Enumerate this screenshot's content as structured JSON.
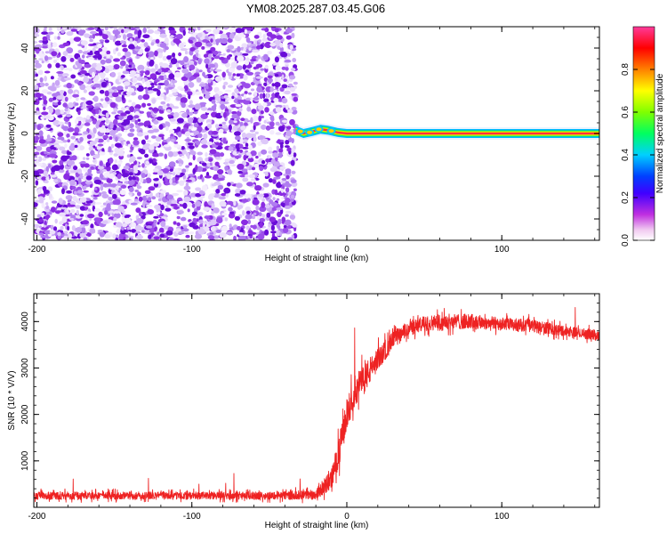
{
  "title": "YM08.2025.287.03.45.G06",
  "colors": {
    "snr_line": "#ee2222",
    "speckle_base": "#8a2be2",
    "colorbar": [
      "#ffffff",
      "#e040e0",
      "#8000ff",
      "#0000ff",
      "#00c0ff",
      "#00ff80",
      "#80ff00",
      "#ffff00",
      "#ff8000",
      "#ff0000",
      "#ff3090"
    ]
  },
  "chart_data": [
    {
      "type": "heatmap",
      "title": "YM08.2025.287.03.45.G06",
      "xlabel": "Height of straight line (km)",
      "ylabel": "Frequency (Hz)",
      "xlim": [
        -202,
        163
      ],
      "ylim": [
        -50,
        50
      ],
      "xticks": [
        "-200",
        "-100",
        "0",
        "100"
      ],
      "xtick_values": [
        -200,
        -100,
        0,
        100
      ],
      "yticks": [
        "-40",
        "-20",
        "0",
        "20",
        "40"
      ],
      "ytick_values": [
        -40,
        -20,
        0,
        20,
        40
      ],
      "noise_region_x": [
        -202,
        -33
      ],
      "signal": {
        "frequency": 0,
        "x_start": -33,
        "x_end": 163,
        "wobble_points": [
          [
            -33,
            1.5
          ],
          [
            -28,
            0
          ],
          [
            -22,
            1
          ],
          [
            -17,
            2
          ],
          [
            -12,
            1.5
          ],
          [
            -6,
            0.5
          ],
          [
            0,
            0
          ],
          [
            163,
            0
          ]
        ]
      },
      "colorbar": {
        "label": "Normalized spectral amplitude",
        "range": [
          0,
          1
        ],
        "ticks": [
          "0.0",
          "0.2",
          "0.4",
          "0.6",
          "0.8"
        ],
        "tick_values": [
          0.0,
          0.2,
          0.4,
          0.6,
          0.8
        ]
      }
    },
    {
      "type": "line",
      "xlabel": "Height of straight line (km)",
      "ylabel": "SNR (10 * V/V)",
      "xlim": [
        -202,
        163
      ],
      "ylim": [
        0,
        4600
      ],
      "xticks": [
        "-200",
        "-100",
        "0",
        "100"
      ],
      "xtick_values": [
        -200,
        -100,
        0,
        100
      ],
      "yticks": [
        "1000",
        "2000",
        "3000",
        "4000"
      ],
      "ytick_values": [
        1000,
        2000,
        3000,
        4000
      ],
      "series": [
        {
          "name": "SNR",
          "x": [
            -202,
            -150,
            -100,
            -60,
            -40,
            -20,
            -10,
            -5,
            0,
            5,
            10,
            20,
            30,
            40,
            50,
            60,
            80,
            100,
            120,
            140,
            163
          ],
          "y": [
            250,
            250,
            250,
            250,
            250,
            280,
            600,
            1200,
            2000,
            2500,
            2700,
            3200,
            3600,
            3850,
            3950,
            4000,
            4000,
            3950,
            3900,
            3800,
            3700
          ],
          "noise_amplitude": [
            150,
            150,
            150,
            150,
            150,
            200,
            400,
            600,
            600,
            600,
            600,
            450,
            350,
            300,
            300,
            300,
            300,
            250,
            250,
            200,
            200
          ]
        }
      ]
    }
  ]
}
